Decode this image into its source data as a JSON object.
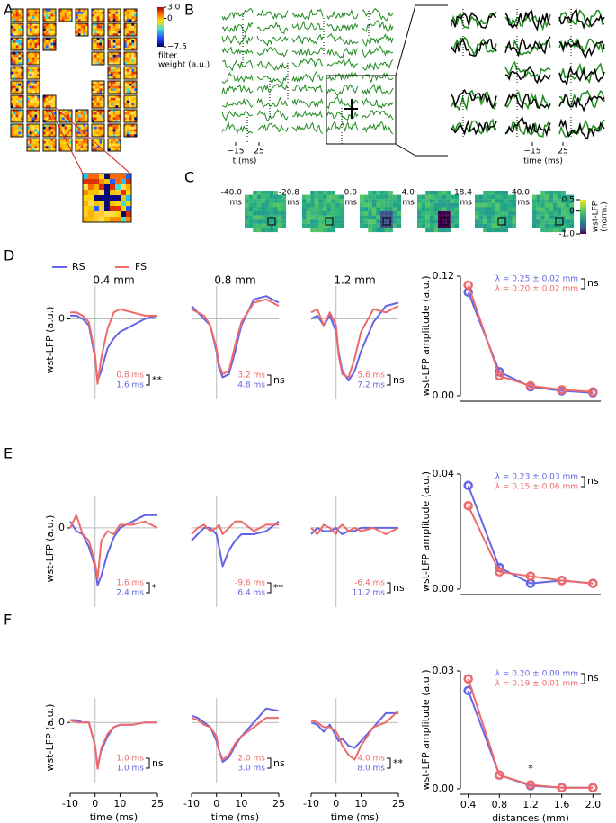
{
  "panel_labels": [
    "A",
    "B",
    "C",
    "D",
    "E",
    "F"
  ],
  "legend": [
    {
      "name": "RS",
      "color": "#6464e6"
    },
    {
      "name": "FS",
      "color": "#ee6a6a"
    }
  ],
  "panel_a": {
    "colorbar_ticks": [
      {
        "value": 3,
        "label": "3.0"
      },
      0,
      {
        "value": -7.5,
        "label": "−7.5"
      }
    ],
    "colorbar_lim": [
      -7.5,
      3
    ],
    "colorbar_label": [
      "filter",
      "weight (a.u.)"
    ]
  },
  "panel_b": {
    "left_ticks": [
      {
        "value": -15,
        "label": "−15"
      },
      25
    ],
    "left_label": "t (ms)",
    "right_ticks": [
      {
        "value": -15,
        "label": "−15"
      },
      25
    ],
    "right_label": "time (ms)"
  },
  "panel_c": {
    "maps": [
      {
        "time": "-40.0",
        "unit": "ms"
      },
      {
        "time": "-20.8",
        "unit": "ms"
      },
      {
        "time": "0.0",
        "unit": "ms"
      },
      {
        "time": "4.0",
        "unit": "ms"
      },
      {
        "time": "18.4",
        "unit": "ms"
      },
      {
        "time": "40.0",
        "unit": "ms"
      }
    ],
    "colorbar_ticks": [
      0.5,
      0,
      {
        "value": -1,
        "label": "-1.0"
      }
    ],
    "colorbar_lim": [
      -1,
      0.5
    ],
    "colorbar_label": [
      "wst-LFP",
      "(norm.)"
    ]
  },
  "chart_data": [
    {
      "type": "line",
      "title": "0.4 mm",
      "ylabel": "wst-LFP (a.u.)",
      "x": [
        -10,
        -7.5,
        -5,
        -2.5,
        0,
        1,
        2.5,
        5,
        7.5,
        10,
        15,
        20,
        25
      ],
      "xlim": [
        -10,
        25
      ],
      "ylim": [
        -1.1,
        0.45
      ],
      "yticks": [
        0
      ],
      "series": [
        {
          "color": "#6464e6",
          "values": [
            0.05,
            0.05,
            0.0,
            -0.1,
            -0.6,
            -0.95,
            -0.8,
            -0.45,
            -0.3,
            -0.2,
            -0.1,
            0.0,
            0.05
          ]
        },
        {
          "color": "#ee6a6a",
          "values": [
            0.1,
            0.1,
            0.05,
            -0.05,
            -0.55,
            -1.0,
            -0.6,
            -0.15,
            0.1,
            0.15,
            0.1,
            0.05,
            0.05
          ]
        }
      ],
      "annotations": [
        "0.8 ms",
        "1.6 ms",
        "**"
      ]
    },
    {
      "type": "line",
      "title": "0.8 mm",
      "x": [
        -10,
        -7.5,
        -5,
        -2.5,
        0,
        1,
        2.5,
        5,
        7.5,
        10,
        15,
        20,
        25
      ],
      "xlim": [
        -10,
        25
      ],
      "ylim": [
        -1.1,
        0.45
      ],
      "series": [
        {
          "color": "#6464e6",
          "values": [
            0.2,
            0.1,
            0.0,
            -0.1,
            -0.5,
            -0.75,
            -0.9,
            -0.85,
            -0.5,
            -0.1,
            0.3,
            0.35,
            0.25
          ]
        },
        {
          "color": "#ee6a6a",
          "values": [
            0.15,
            0.1,
            0.05,
            -0.1,
            -0.45,
            -0.7,
            -0.85,
            -0.8,
            -0.4,
            -0.05,
            0.25,
            0.3,
            0.2
          ]
        }
      ],
      "annotations": [
        "3.2 ms",
        "4.8 ms",
        "ns"
      ]
    },
    {
      "type": "line",
      "title": "1.2 mm",
      "x": [
        -10,
        -7.5,
        -5,
        -2.5,
        0,
        1,
        2.5,
        5,
        7.5,
        10,
        15,
        20,
        25
      ],
      "xlim": [
        -10,
        25
      ],
      "ylim": [
        -1.1,
        0.45
      ],
      "series": [
        {
          "color": "#6464e6",
          "values": [
            0.0,
            0.05,
            -0.1,
            0.05,
            -0.2,
            -0.5,
            -0.8,
            -0.95,
            -0.8,
            -0.5,
            -0.05,
            0.2,
            0.25
          ]
        },
        {
          "color": "#ee6a6a",
          "values": [
            0.1,
            0.15,
            -0.1,
            0.1,
            -0.1,
            -0.55,
            -0.85,
            -0.9,
            -0.6,
            -0.2,
            0.15,
            0.1,
            0.2
          ]
        }
      ],
      "annotations": [
        "5.6 ms",
        "7.2 ms",
        "ns"
      ]
    },
    {
      "type": "line",
      "markers": true,
      "ylabel": "wst-LFP amplitude (a.u.)",
      "x": [
        0.4,
        0.8,
        1.2,
        1.6,
        2.0
      ],
      "xlim": [
        0.3,
        2.1
      ],
      "ylim": [
        0,
        0.12
      ],
      "yticks": [
        {
          "value": 0,
          "label": "0.00"
        },
        0.12
      ],
      "series": [
        {
          "color": "#6464e6",
          "values": [
            0.104,
            0.024,
            0.009,
            0.005,
            0.003
          ]
        },
        {
          "color": "#ee6a6a",
          "values": [
            0.111,
            0.02,
            0.01,
            0.006,
            0.004
          ]
        }
      ],
      "fit_labels": [
        "λ = 0.25 ± 0.02 mm",
        "λ = 0.20 ± 0.02 mm"
      ],
      "fit_test": "ns"
    },
    {
      "type": "line",
      "ylabel": "wst-LFP (a.u.)",
      "x": [
        -10,
        -7.5,
        -5,
        -2.5,
        0,
        1,
        2.5,
        5,
        7.5,
        10,
        15,
        20,
        25
      ],
      "xlim": [
        -10,
        25
      ],
      "ylim": [
        -1.1,
        0.45
      ],
      "yticks": [
        0
      ],
      "series": [
        {
          "color": "#6464e6",
          "values": [
            0.1,
            -0.05,
            -0.1,
            -0.3,
            -0.6,
            -0.9,
            -0.75,
            -0.4,
            -0.15,
            0.0,
            0.1,
            0.2,
            0.2
          ]
        },
        {
          "color": "#ee6a6a",
          "values": [
            0.0,
            0.2,
            -0.1,
            -0.2,
            -0.55,
            -0.8,
            -0.2,
            -0.05,
            -0.1,
            0.05,
            0.05,
            0.1,
            0.0
          ]
        }
      ],
      "annotations": [
        "1.6 ms",
        "2.4 ms",
        "*"
      ]
    },
    {
      "type": "line",
      "x": [
        -10,
        -7.5,
        -5,
        -2.5,
        0,
        1,
        2.5,
        5,
        7.5,
        10,
        15,
        20,
        25
      ],
      "xlim": [
        -10,
        25
      ],
      "ylim": [
        -1.1,
        0.45
      ],
      "series": [
        {
          "color": "#6464e6",
          "values": [
            -0.2,
            -0.1,
            0.0,
            0.0,
            -0.1,
            -0.3,
            -0.6,
            -0.35,
            -0.2,
            -0.1,
            -0.1,
            -0.05,
            0.1
          ]
        },
        {
          "color": "#ee6a6a",
          "values": [
            -0.1,
            0.0,
            0.05,
            -0.05,
            0.0,
            0.05,
            -0.1,
            0.0,
            0.1,
            0.1,
            -0.05,
            0.05,
            0.05
          ]
        }
      ],
      "annotations": [
        "-9.6 ms",
        "6.4 ms",
        "**"
      ]
    },
    {
      "type": "line",
      "x": [
        -10,
        -7.5,
        -5,
        -2.5,
        0,
        1,
        2.5,
        5,
        7.5,
        10,
        15,
        20,
        25
      ],
      "xlim": [
        -10,
        25
      ],
      "ylim": [
        -1.1,
        0.45
      ],
      "series": [
        {
          "color": "#6464e6",
          "values": [
            -0.1,
            0.0,
            -0.05,
            -0.05,
            0.0,
            -0.05,
            -0.1,
            -0.05,
            -0.05,
            0.0,
            0.0,
            0.0,
            0.0
          ]
        },
        {
          "color": "#ee6a6a",
          "values": [
            0.0,
            -0.1,
            0.05,
            0.0,
            -0.1,
            0.0,
            0.05,
            -0.05,
            0.0,
            -0.05,
            0.0,
            -0.1,
            0.0
          ]
        }
      ],
      "annotations": [
        "-6.4 ms",
        "11.2 ms",
        "ns"
      ]
    },
    {
      "type": "line",
      "markers": true,
      "ylabel": "wst-LFP amplitude (a.u.)",
      "x": [
        0.4,
        0.8,
        1.2,
        1.6,
        2.0
      ],
      "xlim": [
        0.3,
        2.1
      ],
      "ylim": [
        0,
        0.04
      ],
      "yticks": [
        {
          "value": 0,
          "label": "0.00"
        },
        0.04
      ],
      "series": [
        {
          "color": "#6464e6",
          "values": [
            0.036,
            0.0075,
            0.002,
            0.003,
            0.002
          ]
        },
        {
          "color": "#ee6a6a",
          "values": [
            0.029,
            0.006,
            0.0045,
            0.003,
            0.002
          ]
        }
      ],
      "fit_labels": [
        "λ = 0.23 ± 0.03 mm",
        "λ = 0.15 ± 0.06 mm"
      ],
      "fit_test": "ns"
    },
    {
      "type": "line",
      "ylabel": "wst-LFP (a.u.)",
      "xlabel": "time (ms)",
      "x": [
        -10,
        -7.5,
        -5,
        -2.5,
        0,
        1,
        2.5,
        5,
        7.5,
        10,
        15,
        20,
        25
      ],
      "xlim": [
        -10,
        25
      ],
      "xticks": [
        -10,
        0,
        10,
        25
      ],
      "ylim": [
        -1.1,
        0.45
      ],
      "yticks": [
        0
      ],
      "series": [
        {
          "color": "#6464e6",
          "values": [
            0.05,
            0.05,
            0.0,
            0.0,
            -0.5,
            -0.95,
            -0.6,
            -0.3,
            -0.1,
            -0.05,
            -0.05,
            0.0,
            0.0
          ]
        },
        {
          "color": "#ee6a6a",
          "values": [
            0.05,
            0.0,
            0.0,
            0.0,
            -0.5,
            -1.0,
            -0.55,
            -0.25,
            -0.1,
            -0.05,
            -0.05,
            0.0,
            0.0
          ]
        }
      ],
      "annotations": [
        "1.0 ms",
        "1.0 ms",
        "ns"
      ]
    },
    {
      "type": "line",
      "xlabel": "time (ms)",
      "x": [
        -10,
        -7.5,
        -5,
        -2.5,
        0,
        1,
        2.5,
        5,
        7.5,
        10,
        15,
        20,
        25
      ],
      "xlim": [
        -10,
        25
      ],
      "xticks": [
        -10,
        0,
        10,
        25
      ],
      "ylim": [
        -1.1,
        0.45
      ],
      "series": [
        {
          "color": "#6464e6",
          "values": [
            0.15,
            0.1,
            0.0,
            -0.1,
            -0.4,
            -0.6,
            -0.85,
            -0.75,
            -0.5,
            -0.3,
            0.0,
            0.3,
            0.25
          ]
        },
        {
          "color": "#ee6a6a",
          "values": [
            0.1,
            0.05,
            -0.05,
            -0.1,
            -0.3,
            -0.6,
            -0.8,
            -0.7,
            -0.45,
            -0.3,
            -0.1,
            0.1,
            0.1
          ]
        }
      ],
      "annotations": [
        "2.0 ms",
        "3.0 ms",
        "ns"
      ]
    },
    {
      "type": "line",
      "xlabel": "time (ms)",
      "x": [
        -10,
        -7.5,
        -5,
        -2.5,
        0,
        1,
        2.5,
        5,
        7.5,
        10,
        15,
        20,
        25
      ],
      "xlim": [
        -10,
        25
      ],
      "xticks": [
        -10,
        0,
        10,
        25
      ],
      "ylim": [
        -1.1,
        0.45
      ],
      "series": [
        {
          "color": "#6464e6",
          "values": [
            0.0,
            -0.05,
            -0.2,
            -0.05,
            -0.3,
            -0.4,
            -0.35,
            -0.5,
            -0.55,
            -0.4,
            -0.1,
            0.2,
            0.2
          ]
        },
        {
          "color": "#ee6a6a",
          "values": [
            0.05,
            0.0,
            -0.1,
            -0.1,
            -0.2,
            -0.3,
            -0.5,
            -0.7,
            -0.8,
            -0.5,
            -0.1,
            0.0,
            0.25
          ]
        }
      ],
      "annotations": [
        "4.0 ms",
        "8.0 ms",
        "**"
      ]
    },
    {
      "type": "line",
      "markers": true,
      "ylabel": "wst-LFP amplitude (a.u.)",
      "xlabel": "distances (mm)",
      "x": [
        0.4,
        0.8,
        1.2,
        1.6,
        2.0
      ],
      "xlim": [
        0.3,
        2.1
      ],
      "xticks": [
        0.4,
        0.8,
        1.2,
        1.6,
        {
          "value": 2,
          "label": "2.0"
        }
      ],
      "ylim": [
        0,
        0.03
      ],
      "yticks": [
        {
          "value": 0,
          "label": "0.00"
        },
        0.03
      ],
      "series": [
        {
          "color": "#6464e6",
          "values": [
            0.025,
            0.0035,
            0.0008,
            0.0003,
            0.0003
          ]
        },
        {
          "color": "#ee6a6a",
          "values": [
            0.028,
            0.0035,
            0.001,
            0.0003,
            0.0003
          ]
        }
      ],
      "fit_labels": [
        "λ = 0.20 ± 0.00 mm",
        "λ = 0.19 ± 0.01 mm"
      ],
      "fit_test": "ns",
      "point_notes": [
        {
          "x": 1.2,
          "text": "*"
        }
      ]
    }
  ]
}
